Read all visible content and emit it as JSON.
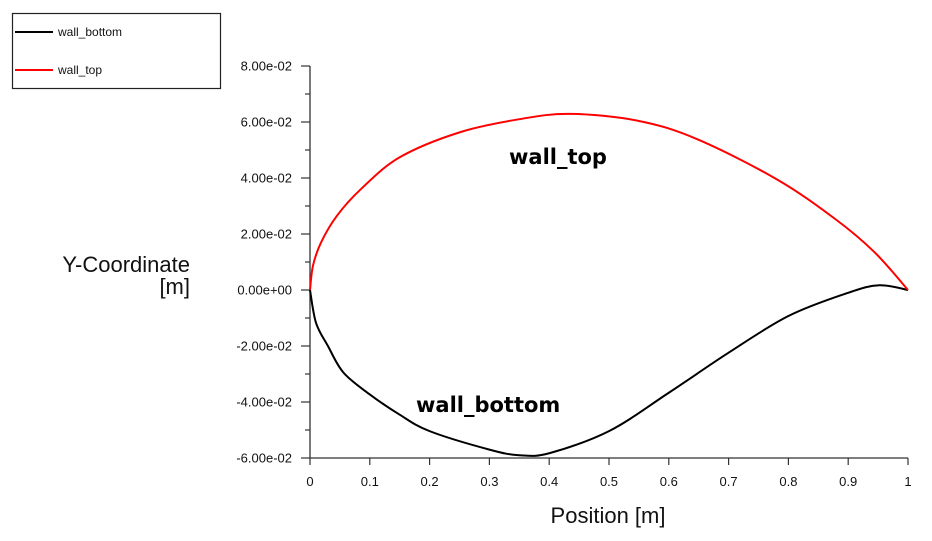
{
  "chart_data": {
    "type": "line",
    "title": "",
    "xlabel": "Position [m]",
    "ylabel": [
      "Y-Coordinate",
      "[m]"
    ],
    "xlim": [
      0,
      1
    ],
    "ylim": [
      -0.06,
      0.08
    ],
    "xticks": [
      0,
      0.1,
      0.2,
      0.3,
      0.4,
      0.5,
      0.6,
      0.7,
      0.8,
      0.9,
      1
    ],
    "xtick_labels": [
      "0",
      "0.1",
      "0.2",
      "0.3",
      "0.4",
      "0.5",
      "0.6",
      "0.7",
      "0.8",
      "0.9",
      "1"
    ],
    "yticks": [
      0.08,
      0.06,
      0.04,
      0.02,
      0,
      -0.02,
      -0.04,
      -0.06
    ],
    "ytick_labels": [
      "8.00e-02",
      "6.00e-02",
      "4.00e-02",
      "2.00e-02",
      "0.00e+00",
      "-2.00e-02",
      "-4.00e-02",
      "-6.00e-02"
    ],
    "grid": false,
    "legend_position": "top-left",
    "series": [
      {
        "name": "wall_bottom",
        "color": "#000000",
        "annotation": "wall_bottom",
        "x": [
          0,
          0.01,
          0.03,
          0.056,
          0.1,
          0.149,
          0.2,
          0.3,
          0.35,
          0.4,
          0.5,
          0.6,
          0.7,
          0.8,
          0.9,
          0.952,
          1
        ],
        "y": [
          0,
          -0.0117,
          -0.02,
          -0.0295,
          -0.0373,
          -0.0444,
          -0.0504,
          -0.057,
          -0.059,
          -0.0583,
          -0.0504,
          -0.0367,
          -0.0224,
          -0.0093,
          -0.001,
          0.0017,
          0
        ]
      },
      {
        "name": "wall_top",
        "color": "#ff0000",
        "annotation": "wall_top",
        "x": [
          0,
          0.005,
          0.0185,
          0.045,
          0.085,
          0.15,
          0.25,
          0.35,
          0.435,
          0.547,
          0.646,
          0.78,
          0.878,
          0.944,
          1
        ],
        "y": [
          0,
          0.0087,
          0.017,
          0.0265,
          0.036,
          0.0474,
          0.0563,
          0.061,
          0.0629,
          0.0605,
          0.054,
          0.0396,
          0.0254,
          0.0135,
          0
        ]
      }
    ]
  }
}
